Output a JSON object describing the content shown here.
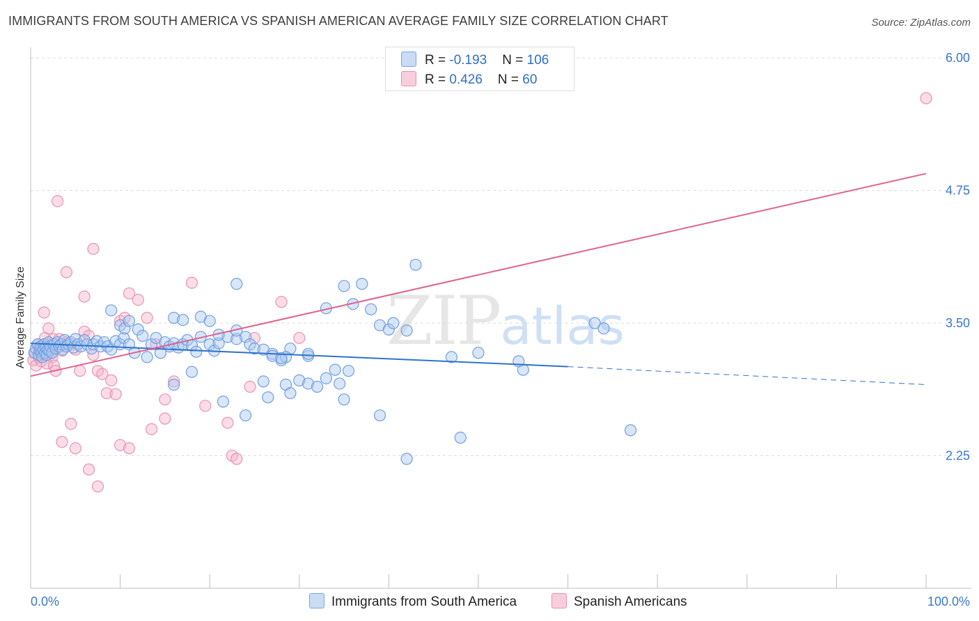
{
  "header": {
    "title": "IMMIGRANTS FROM SOUTH AMERICA VS SPANISH AMERICAN AVERAGE FAMILY SIZE CORRELATION CHART",
    "source": "Source: ZipAtlas.com"
  },
  "legend": {
    "rows": [
      {
        "r_label": "R = ",
        "r_value": "-0.193",
        "n_label": "N = ",
        "n_value": "106"
      },
      {
        "r_label": "R = ",
        "r_value": "0.426",
        "n_label": "N = ",
        "n_value": "60"
      }
    ]
  },
  "watermark": {
    "zip": "ZIP",
    "atlas": "atlas"
  },
  "chart_data": {
    "type": "scatter",
    "title": "IMMIGRANTS FROM SOUTH AMERICA VS SPANISH AMERICAN AVERAGE FAMILY SIZE CORRELATION CHART",
    "ylabel": "Average Family Size",
    "xlabel": "",
    "x_tick_labels": [
      "0.0%",
      "100.0%"
    ],
    "y_ticks": [
      2.25,
      3.5,
      4.75,
      6.0
    ],
    "y_tick_labels": [
      "2.25",
      "3.50",
      "4.75",
      "6.00"
    ],
    "xlim": [
      0,
      100
    ],
    "ylim": [
      1.0,
      6.1
    ],
    "grid": "horizontal dashed",
    "colors": {
      "blue": "#4a86d8",
      "blue_fill": "#b7d0f0",
      "pink": "#e0628e",
      "pink_fill": "#f5bfd2",
      "tick": "#3a78c9"
    },
    "series": [
      {
        "name": "Immigrants from South America",
        "color": "#4a86d8",
        "R": -0.193,
        "N": 106,
        "trend": {
          "x0": 0,
          "y0": 3.31,
          "x1": 60,
          "y1": 3.09,
          "dash_to_x": 100,
          "dash_to_y": 2.92
        },
        "points": [
          [
            0.4,
            3.22
          ],
          [
            0.6,
            3.26
          ],
          [
            0.8,
            3.3
          ],
          [
            0.9,
            3.2
          ],
          [
            1.0,
            3.24
          ],
          [
            1.1,
            3.28
          ],
          [
            1.2,
            3.22
          ],
          [
            1.3,
            3.18
          ],
          [
            1.4,
            3.25
          ],
          [
            1.5,
            3.3
          ],
          [
            1.6,
            3.22
          ],
          [
            1.7,
            3.27
          ],
          [
            1.8,
            3.2
          ],
          [
            1.9,
            3.25
          ],
          [
            2.0,
            3.32
          ],
          [
            2.1,
            3.24
          ],
          [
            2.2,
            3.28
          ],
          [
            2.4,
            3.22
          ],
          [
            2.6,
            3.3
          ],
          [
            2.8,
            3.26
          ],
          [
            3.0,
            3.32
          ],
          [
            3.2,
            3.28
          ],
          [
            3.4,
            3.3
          ],
          [
            3.6,
            3.25
          ],
          [
            3.8,
            3.34
          ],
          [
            4.0,
            3.28
          ],
          [
            4.2,
            3.3
          ],
          [
            4.5,
            3.32
          ],
          [
            4.8,
            3.27
          ],
          [
            5.0,
            3.35
          ],
          [
            5.3,
            3.3
          ],
          [
            5.6,
            3.28
          ],
          [
            6.0,
            3.34
          ],
          [
            6.3,
            3.3
          ],
          [
            6.8,
            3.26
          ],
          [
            7.0,
            3.3
          ],
          [
            7.4,
            3.33
          ],
          [
            7.8,
            3.28
          ],
          [
            8.2,
            3.32
          ],
          [
            8.6,
            3.28
          ],
          [
            9.0,
            3.25
          ],
          [
            9.5,
            3.33
          ],
          [
            10.0,
            3.3
          ],
          [
            10.4,
            3.36
          ],
          [
            11.0,
            3.3
          ],
          [
            11.6,
            3.22
          ],
          [
            12.0,
            3.44
          ],
          [
            12.5,
            3.38
          ],
          [
            13.0,
            3.18
          ],
          [
            13.5,
            3.3
          ],
          [
            14.0,
            3.36
          ],
          [
            14.5,
            3.22
          ],
          [
            15.0,
            3.32
          ],
          [
            15.5,
            3.28
          ],
          [
            16.0,
            3.31
          ],
          [
            16.5,
            3.27
          ],
          [
            17.0,
            3.3
          ],
          [
            17.5,
            3.34
          ],
          [
            18.0,
            3.29
          ],
          [
            18.5,
            3.23
          ],
          [
            19.0,
            3.37
          ],
          [
            20.0,
            3.3
          ],
          [
            20.5,
            3.24
          ],
          [
            21.0,
            3.31
          ],
          [
            22.0,
            3.37
          ],
          [
            23.0,
            3.35
          ],
          [
            24.0,
            3.37
          ],
          [
            24.5,
            3.3
          ],
          [
            25.0,
            3.26
          ],
          [
            26.0,
            3.25
          ],
          [
            27.0,
            3.21
          ],
          [
            28.0,
            3.15
          ],
          [
            29.0,
            3.26
          ],
          [
            9.0,
            3.62
          ],
          [
            10.0,
            3.48
          ],
          [
            10.5,
            3.45
          ],
          [
            11.0,
            3.52
          ],
          [
            16.0,
            3.55
          ],
          [
            17.0,
            3.53
          ],
          [
            19.0,
            3.56
          ],
          [
            21.0,
            3.39
          ],
          [
            23.0,
            3.43
          ],
          [
            28.5,
            3.18
          ],
          [
            31.0,
            3.19
          ],
          [
            23.0,
            3.87
          ],
          [
            27.0,
            3.19
          ],
          [
            28.0,
            3.17
          ],
          [
            31.0,
            3.21
          ],
          [
            36.0,
            3.68
          ],
          [
            33.0,
            3.64
          ],
          [
            35.0,
            3.85
          ],
          [
            37.0,
            3.87
          ],
          [
            38.0,
            3.63
          ],
          [
            39.0,
            3.48
          ],
          [
            40.0,
            3.44
          ],
          [
            40.5,
            3.5
          ],
          [
            42.0,
            3.43
          ],
          [
            35.5,
            3.05
          ],
          [
            34.0,
            3.06
          ],
          [
            30.0,
            2.96
          ],
          [
            31.0,
            2.93
          ],
          [
            32.0,
            2.9
          ],
          [
            33.0,
            2.98
          ],
          [
            34.5,
            2.93
          ],
          [
            26.0,
            2.95
          ],
          [
            24.0,
            2.63
          ],
          [
            39.0,
            2.63
          ],
          [
            28.5,
            2.92
          ],
          [
            18.0,
            3.04
          ],
          [
            16.0,
            2.92
          ],
          [
            21.5,
            2.76
          ],
          [
            26.5,
            2.8
          ],
          [
            29.0,
            2.84
          ],
          [
            35.0,
            2.78
          ],
          [
            47.0,
            3.18
          ],
          [
            50.0,
            3.22
          ],
          [
            55.0,
            3.06
          ],
          [
            54.5,
            3.14
          ],
          [
            63.0,
            3.5
          ],
          [
            64.0,
            3.45
          ],
          [
            67.0,
            2.49
          ],
          [
            42.0,
            2.22
          ],
          [
            48.0,
            2.42
          ],
          [
            43.0,
            4.05
          ],
          [
            20.0,
            3.52
          ]
        ]
      },
      {
        "name": "Spanish Americans",
        "color": "#e0628e",
        "R": 0.426,
        "N": 60,
        "trend": {
          "x0": 0,
          "y0": 3.0,
          "x1": 100,
          "y1": 4.91
        },
        "points": [
          [
            0.3,
            3.15
          ],
          [
            0.5,
            3.22
          ],
          [
            0.6,
            3.1
          ],
          [
            0.8,
            3.3
          ],
          [
            0.9,
            3.18
          ],
          [
            1.0,
            3.25
          ],
          [
            1.2,
            3.14
          ],
          [
            1.4,
            3.28
          ],
          [
            1.5,
            3.2
          ],
          [
            1.6,
            3.36
          ],
          [
            1.8,
            3.12
          ],
          [
            2.0,
            3.3
          ],
          [
            2.2,
            3.22
          ],
          [
            2.4,
            3.18
          ],
          [
            2.6,
            3.1
          ],
          [
            2.8,
            3.05
          ],
          [
            3.0,
            3.27
          ],
          [
            3.2,
            3.35
          ],
          [
            3.5,
            3.24
          ],
          [
            4.0,
            3.32
          ],
          [
            4.5,
            3.3
          ],
          [
            5.0,
            3.25
          ],
          [
            5.5,
            3.05
          ],
          [
            6.0,
            3.42
          ],
          [
            6.5,
            3.38
          ],
          [
            7.0,
            3.2
          ],
          [
            7.5,
            3.05
          ],
          [
            8.0,
            3.02
          ],
          [
            8.5,
            2.84
          ],
          [
            9.0,
            2.96
          ],
          [
            9.5,
            2.83
          ],
          [
            10.0,
            3.52
          ],
          [
            10.5,
            3.55
          ],
          [
            11.0,
            3.78
          ],
          [
            12.0,
            3.72
          ],
          [
            13.0,
            3.55
          ],
          [
            14.0,
            3.3
          ],
          [
            15.0,
            2.78
          ],
          [
            16.0,
            2.95
          ],
          [
            18.0,
            3.88
          ],
          [
            19.5,
            2.72
          ],
          [
            22.0,
            2.56
          ],
          [
            22.5,
            2.25
          ],
          [
            23.0,
            2.22
          ],
          [
            24.5,
            2.9
          ],
          [
            25.0,
            3.36
          ],
          [
            30.0,
            3.36
          ],
          [
            3.0,
            4.65
          ],
          [
            4.0,
            3.98
          ],
          [
            6.0,
            3.75
          ],
          [
            7.0,
            4.2
          ],
          [
            1.5,
            3.6
          ],
          [
            2.0,
            3.45
          ],
          [
            2.5,
            3.35
          ],
          [
            3.5,
            2.38
          ],
          [
            4.5,
            2.55
          ],
          [
            5.0,
            2.32
          ],
          [
            6.5,
            2.12
          ],
          [
            7.5,
            1.96
          ],
          [
            10.0,
            2.35
          ],
          [
            11.0,
            2.32
          ],
          [
            13.5,
            2.5
          ],
          [
            15.0,
            2.6
          ],
          [
            28.0,
            3.7
          ],
          [
            100.0,
            5.62
          ]
        ]
      }
    ]
  },
  "bottom_legend": {
    "items": [
      {
        "label": "Immigrants from South America"
      },
      {
        "label": "Spanish Americans"
      }
    ]
  }
}
